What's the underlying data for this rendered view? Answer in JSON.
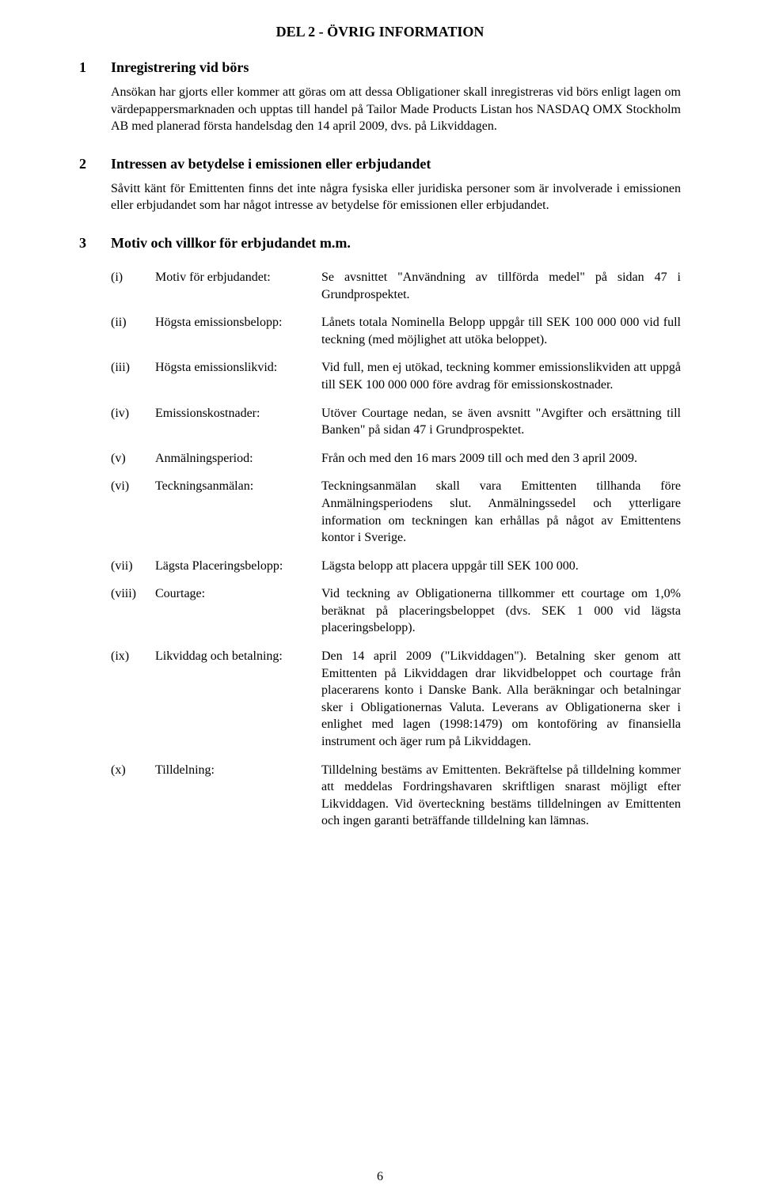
{
  "title": "DEL 2 - ÖVRIG INFORMATION",
  "section1": {
    "num": "1",
    "heading": "Inregistrering vid börs",
    "para": "Ansökan har gjorts eller kommer att göras om att dessa Obligationer skall inregistreras vid börs enligt lagen om värdepappersmarknaden och upptas till handel på Tailor Made Products Listan hos NASDAQ OMX Stockholm AB med planerad första handelsdag den 14 april 2009, dvs. på Likviddagen."
  },
  "section2": {
    "num": "2",
    "heading": "Intressen av betydelse i emissionen eller erbjudandet",
    "para": "Såvitt känt för Emittenten finns det inte några fysiska eller juridiska personer som är involverade i emissionen eller erbjudandet som har något intresse av betydelse för emissionen eller erbjudandet."
  },
  "section3": {
    "num": "3",
    "heading": "Motiv och villkor för erbjudandet m.m.",
    "items": [
      {
        "num": "(i)",
        "label": "Motiv för erbjudandet:",
        "value": "Se avsnittet \"Användning av tillförda medel\" på sidan 47 i Grundprospektet."
      },
      {
        "num": "(ii)",
        "label": "Högsta emissionsbelopp:",
        "value": "Lånets totala Nominella Belopp uppgår till SEK 100 000 000 vid full teckning (med möjlighet att utöka beloppet)."
      },
      {
        "num": "(iii)",
        "label": "Högsta emissionslikvid:",
        "value": "Vid full, men ej utökad, teckning kommer emissionslikviden att uppgå till SEK 100 000 000 före avdrag för emissionskostnader."
      },
      {
        "num": "(iv)",
        "label": "Emissionskostnader:",
        "value": "Utöver Courtage nedan, se även avsnitt \"Avgifter och ersättning till Banken\" på sidan 47 i Grundprospektet."
      },
      {
        "num": "(v)",
        "label": "Anmälningsperiod:",
        "value": "Från och med den 16 mars 2009 till och med den 3 april 2009."
      },
      {
        "num": "(vi)",
        "label": "Teckningsanmälan:",
        "value": "Teckningsanmälan skall vara Emittenten tillhanda före Anmälningsperiodens slut. Anmälningssedel och ytterligare information om teckningen kan erhållas på något av Emittentens kontor i Sverige."
      },
      {
        "num": "(vii)",
        "label": "Lägsta Placeringsbelopp:",
        "value": "Lägsta belopp att placera uppgår till SEK 100 000."
      },
      {
        "num": "(viii)",
        "label": "Courtage:",
        "value": "Vid teckning av Obligationerna tillkommer ett courtage om 1,0% beräknat på placeringsbeloppet (dvs. SEK 1 000 vid lägsta placeringsbelopp)."
      },
      {
        "num": "(ix)",
        "label": "Likviddag och betalning:",
        "value": "Den 14 april 2009 (\"Likviddagen\"). Betalning sker genom att Emittenten på Likviddagen drar likvidbeloppet och courtage från placerarens konto i Danske Bank. Alla beräkningar och betalningar sker i Obligationernas Valuta. Leverans av Obligationerna sker i enlighet med lagen (1998:1479) om kontoföring av finansiella instrument och äger rum på Likviddagen."
      },
      {
        "num": "(x)",
        "label": "Tilldelning:",
        "value": "Tilldelning bestäms av Emittenten. Bekräftelse på tilldelning kommer att meddelas Fordringshavaren skriftligen snarast möjligt efter Likviddagen. Vid överteckning bestäms tilldelningen av Emittenten och ingen garanti beträffande tilldelning kan lämnas."
      }
    ]
  },
  "pageNumber": "6"
}
